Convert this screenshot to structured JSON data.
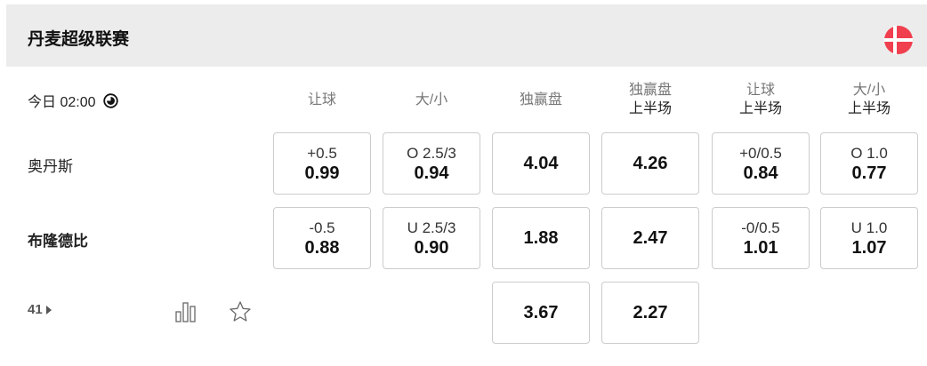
{
  "league": {
    "title": "丹麦超级联赛",
    "flag_icon": "denmark-flag-icon",
    "flag_color": "#f04050"
  },
  "match": {
    "time": "今日 02:00",
    "market_count": "41"
  },
  "columns": [
    {
      "label": "让球",
      "sub": ""
    },
    {
      "label": "大/小",
      "sub": ""
    },
    {
      "label": "独赢盘",
      "sub": ""
    },
    {
      "label": "独赢盘",
      "sub": "上半场"
    },
    {
      "label": "让球",
      "sub": "上半场"
    },
    {
      "label": "大/小",
      "sub": "上半场"
    }
  ],
  "rows": [
    {
      "team": "奥丹斯",
      "cells": [
        {
          "label": "+0.5",
          "odd": "0.99"
        },
        {
          "label": "O 2.5/3",
          "odd": "0.94"
        },
        {
          "label": "",
          "odd": "4.04"
        },
        {
          "label": "",
          "odd": "4.26"
        },
        {
          "label": "+0/0.5",
          "odd": "0.84"
        },
        {
          "label": "O 1.0",
          "odd": "0.77"
        }
      ]
    },
    {
      "team": "布隆德比",
      "cells": [
        {
          "label": "-0.5",
          "odd": "0.88"
        },
        {
          "label": "U 2.5/3",
          "odd": "0.90"
        },
        {
          "label": "",
          "odd": "1.88"
        },
        {
          "label": "",
          "odd": "2.47"
        },
        {
          "label": "-0/0.5",
          "odd": "1.01"
        },
        {
          "label": "U 1.0",
          "odd": "1.07"
        }
      ]
    },
    {
      "team": "",
      "cells": [
        null,
        null,
        {
          "label": "",
          "odd": "3.67"
        },
        {
          "label": "",
          "odd": "2.27"
        },
        null,
        null
      ]
    }
  ]
}
